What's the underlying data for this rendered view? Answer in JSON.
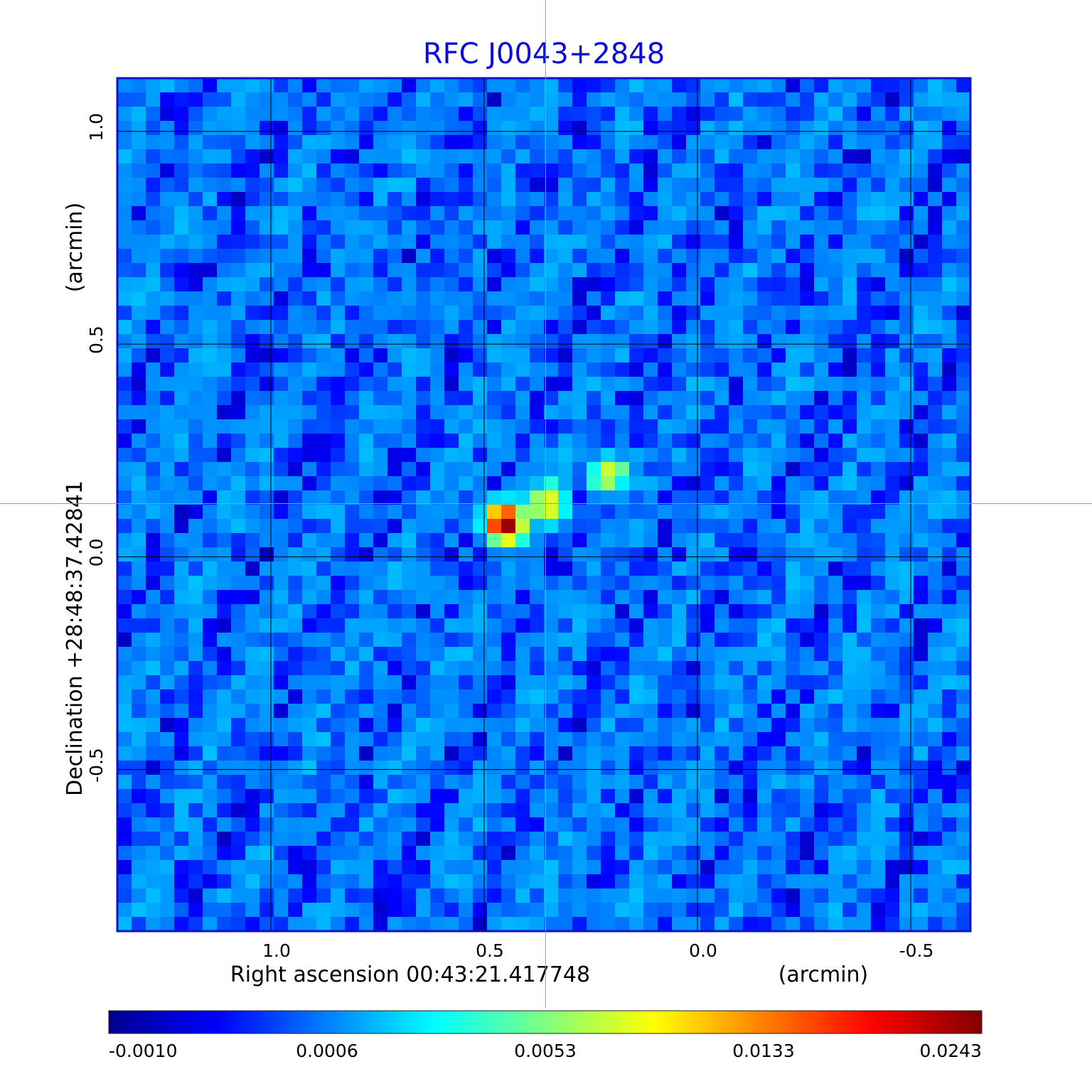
{
  "chart_data": {
    "type": "heatmap",
    "title": "RFC J0043+2848",
    "title_color": "#0a0adc",
    "xlabel": "Right ascension  00:43:21.417748",
    "xlabel_unit": "(arcmin)",
    "ylabel": "Declination  +28:48:37.42841",
    "ylabel_unit": "(arcmin)",
    "x_ticks": [
      {
        "value": 1.0,
        "label": "1.0"
      },
      {
        "value": 0.5,
        "label": "0.5"
      },
      {
        "value": 0.0,
        "label": "0.0"
      },
      {
        "value": -0.5,
        "label": "-0.5"
      }
    ],
    "y_ticks": [
      {
        "value": 1.0,
        "label": "1.0"
      },
      {
        "value": 0.5,
        "label": "0.5"
      },
      {
        "value": 0.0,
        "label": "0.0"
      },
      {
        "value": -0.5,
        "label": "-0.5"
      }
    ],
    "xlim": [
      1.36,
      -0.64
    ],
    "ylim": [
      -0.88,
      1.125
    ],
    "grid": true,
    "crosshair": {
      "x": 0.356,
      "y": 0.125,
      "color": "#33dd44"
    },
    "colorbar": {
      "colormap": "jet",
      "tick_labels": [
        "-0.0010",
        "0.0006",
        "0.0053",
        "0.0133",
        "0.0243"
      ],
      "min": -0.001,
      "max": 0.0243
    },
    "sources": [
      {
        "x": 0.452,
        "y": 0.08,
        "peak": 0.0243
      },
      {
        "x": 0.35,
        "y": 0.125,
        "peak": 0.009
      },
      {
        "x": 0.21,
        "y": 0.195,
        "peak": 0.0085
      }
    ],
    "background_level": 0.0006
  }
}
